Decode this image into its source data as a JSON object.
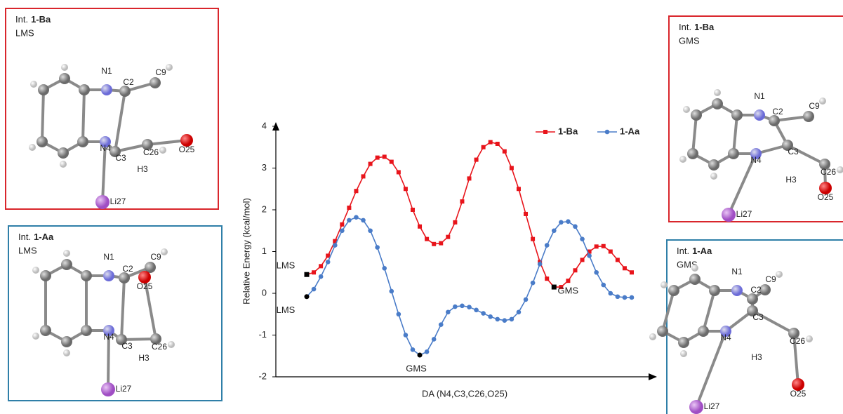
{
  "chart_data": {
    "type": "line",
    "y_label": "Relative Energy (kcal/mol)",
    "x_label": "DA (N4,C3,C26,O25)",
    "categories": [
      null,
      null,
      null,
      null,
      null,
      null,
      null,
      null,
      null,
      null,
      null,
      null,
      null,
      null,
      null,
      null,
      null,
      null,
      null,
      null,
      null,
      null,
      null,
      null,
      null,
      null,
      null,
      null,
      null,
      null,
      null,
      null,
      null,
      null,
      null,
      null,
      null,
      null,
      null,
      null,
      null,
      null,
      null,
      null,
      null,
      null,
      null
    ],
    "ylim": [
      -2,
      4
    ],
    "yticks": [
      -2,
      -1,
      0,
      1,
      2,
      3,
      4
    ],
    "legend": "top-right",
    "series": [
      {
        "name": "1-Ba",
        "color": "#e8141b",
        "marker": "square",
        "values": [
          0.45,
          0.5,
          0.65,
          0.9,
          1.25,
          1.65,
          2.05,
          2.45,
          2.8,
          3.1,
          3.25,
          3.27,
          3.15,
          2.9,
          2.5,
          2.0,
          1.6,
          1.3,
          1.18,
          1.2,
          1.35,
          1.7,
          2.2,
          2.75,
          3.2,
          3.5,
          3.62,
          3.58,
          3.4,
          3.0,
          2.5,
          1.9,
          1.3,
          0.75,
          0.35,
          0.15,
          0.15,
          0.3,
          0.55,
          0.8,
          1.0,
          1.12,
          1.13,
          1.0,
          0.8,
          0.6,
          0.5
        ]
      },
      {
        "name": "1-Aa",
        "color": "#4a7cc8",
        "marker": "circle",
        "values": [
          -0.08,
          0.1,
          0.4,
          0.75,
          1.15,
          1.5,
          1.75,
          1.82,
          1.75,
          1.5,
          1.1,
          0.6,
          0.05,
          -0.5,
          -1.0,
          -1.35,
          -1.48,
          -1.4,
          -1.1,
          -0.75,
          -0.45,
          -0.32,
          -0.3,
          -0.33,
          -0.4,
          -0.48,
          -0.56,
          -0.62,
          -0.65,
          -0.62,
          -0.45,
          -0.15,
          0.25,
          0.7,
          1.15,
          1.5,
          1.7,
          1.72,
          1.6,
          1.3,
          0.9,
          0.5,
          0.2,
          0.0,
          -0.08,
          -0.1,
          -0.1
        ]
      }
    ],
    "annotations": [
      {
        "text": "LMS",
        "series": 0,
        "index": 0
      },
      {
        "text": "LMS",
        "series": 1,
        "index": 0
      },
      {
        "text": "GMS",
        "series": 1,
        "index": 16
      },
      {
        "text": "GMS",
        "series": 0,
        "index": 35
      }
    ]
  },
  "panels": [
    {
      "prefix": "Int.",
      "compound": "1-Ba",
      "state": "LMS",
      "color": "#d9262c",
      "atoms": [
        "N1",
        "C2",
        "C9",
        "N4",
        "C3",
        "C26",
        "O25",
        "H3",
        "Li27"
      ]
    },
    {
      "prefix": "Int.",
      "compound": "1-Aa",
      "state": "LMS",
      "color": "#2f7fa8",
      "atoms": [
        "N1",
        "C2",
        "C9",
        "O25",
        "N4",
        "C3",
        "C26",
        "H3",
        "Li27"
      ]
    },
    {
      "prefix": "Int.",
      "compound": "1-Ba",
      "state": "GMS",
      "color": "#d9262c",
      "atoms": [
        "N1",
        "C2",
        "C9",
        "C3",
        "N4",
        "C26",
        "H3",
        "O25",
        "Li27"
      ]
    },
    {
      "prefix": "Int.",
      "compound": "1-Aa",
      "state": "GMS",
      "color": "#2f7fa8",
      "atoms": [
        "N1",
        "C9",
        "C2",
        "C3",
        "N4",
        "C26",
        "H3",
        "O25",
        "Li27"
      ]
    }
  ]
}
